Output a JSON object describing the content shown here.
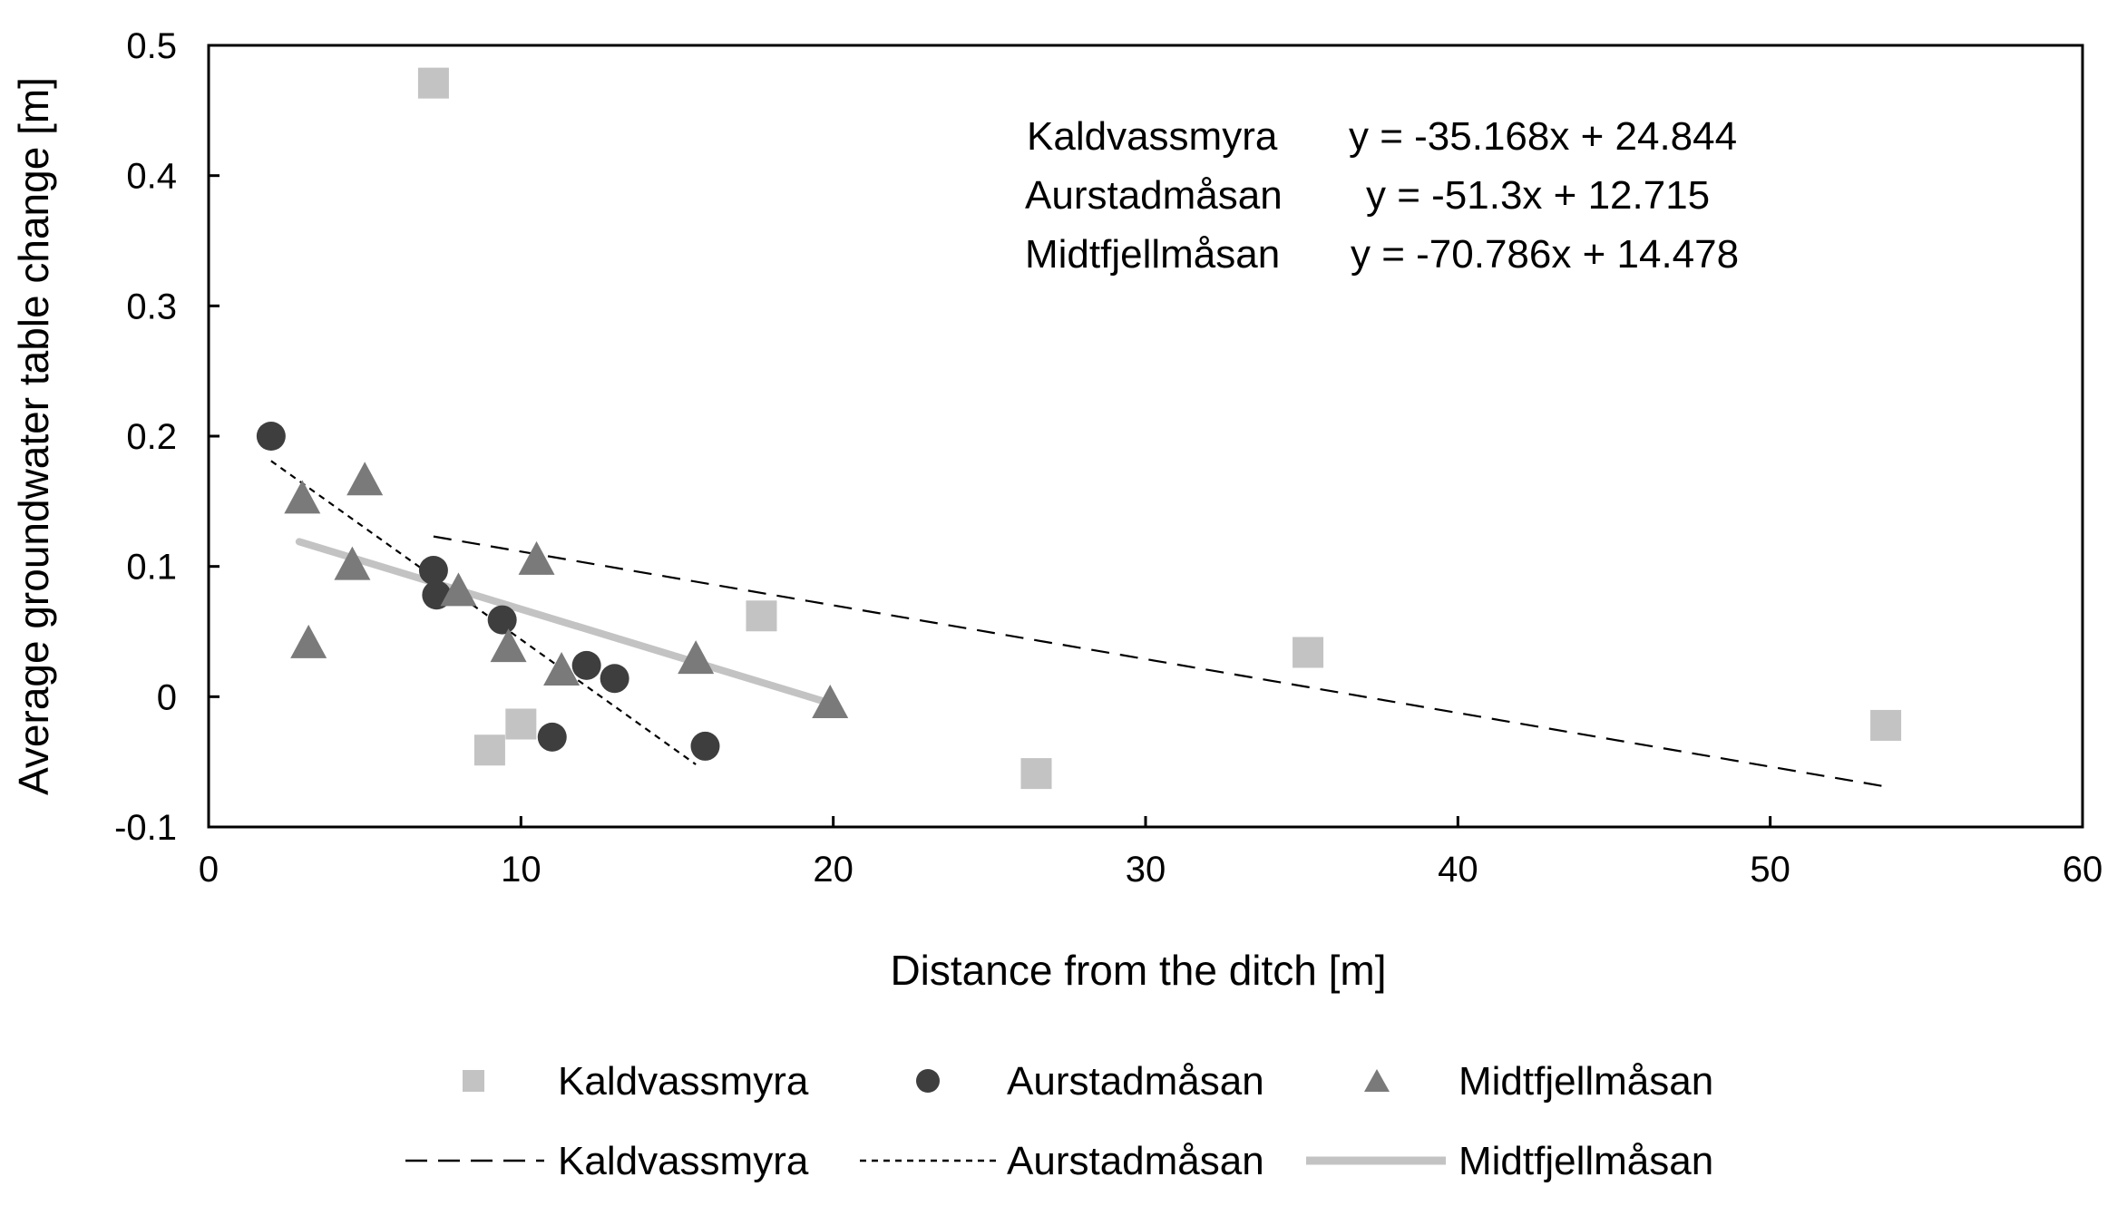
{
  "chart_data": {
    "type": "scatter",
    "title": "",
    "xlabel": "Distance from the ditch [m]",
    "ylabel": "Average groundwater table change [m]",
    "xlim": [
      0,
      60
    ],
    "ylim": [
      -0.1,
      0.5
    ],
    "xticks": [
      0,
      10,
      20,
      30,
      40,
      50,
      60
    ],
    "yticks": [
      -0.1,
      0,
      0.1,
      0.2,
      0.3,
      0.4,
      0.5
    ],
    "ytick_labels": [
      "-0.1",
      "0",
      "0.1",
      "0.2",
      "0.3",
      "0.4",
      "0.5"
    ],
    "xtick_labels": [
      "0",
      "10",
      "20",
      "30",
      "40",
      "50",
      "60"
    ],
    "grid": false,
    "legend_position": "bottom",
    "series": [
      {
        "name": "Kaldvassmyra",
        "marker": "square",
        "color": "#c3c3c3",
        "points": [
          {
            "x": 7.2,
            "y": 0.471
          },
          {
            "x": 9.0,
            "y": -0.041
          },
          {
            "x": 10.0,
            "y": -0.021
          },
          {
            "x": 17.7,
            "y": 0.062
          },
          {
            "x": 26.5,
            "y": -0.059
          },
          {
            "x": 35.2,
            "y": 0.034
          },
          {
            "x": 53.7,
            "y": -0.022
          }
        ],
        "trendline": {
          "label": "Kaldvassmyra",
          "style": "long-dash",
          "color": "#000000",
          "x": [
            7.2,
            53.7
          ],
          "y": [
            0.123,
            -0.069
          ]
        }
      },
      {
        "name": "Aurstadmåsan",
        "marker": "circle",
        "color": "#3e3e3e",
        "points": [
          {
            "x": 2.0,
            "y": 0.2
          },
          {
            "x": 7.2,
            "y": 0.097
          },
          {
            "x": 7.3,
            "y": 0.078
          },
          {
            "x": 9.4,
            "y": 0.059
          },
          {
            "x": 11.0,
            "y": -0.031
          },
          {
            "x": 12.1,
            "y": 0.024
          },
          {
            "x": 13.0,
            "y": 0.014
          },
          {
            "x": 15.9,
            "y": -0.038
          }
        ],
        "trendline": {
          "label": "Aurstadmåsan",
          "style": "short-dash",
          "color": "#000000",
          "x": [
            2.0,
            15.6
          ],
          "y": [
            0.181,
            -0.052
          ]
        }
      },
      {
        "name": "Midtfjellmåsan",
        "marker": "triangle",
        "color": "#7a7a7a",
        "points": [
          {
            "x": 3.0,
            "y": 0.151
          },
          {
            "x": 3.2,
            "y": 0.04
          },
          {
            "x": 4.6,
            "y": 0.1
          },
          {
            "x": 5.0,
            "y": 0.165
          },
          {
            "x": 8.0,
            "y": 0.08
          },
          {
            "x": 9.6,
            "y": 0.037
          },
          {
            "x": 10.5,
            "y": 0.104
          },
          {
            "x": 11.3,
            "y": 0.019
          },
          {
            "x": 15.6,
            "y": 0.028
          },
          {
            "x": 19.9,
            "y": -0.006
          }
        ],
        "trendline": {
          "label": "Midtfjellmåsan",
          "style": "solid",
          "color": "#c3c3c3",
          "x": [
            2.9,
            19.9
          ],
          "y": [
            0.119,
            -0.005
          ]
        }
      }
    ],
    "equations": [
      {
        "site": "Kaldvassmyra",
        "formula": "y = -35.168x + 24.844"
      },
      {
        "site": "Aurstadmåsan",
        "formula": "y = -51.3x + 12.715"
      },
      {
        "site": "Midtfjellmåsan",
        "formula": "y = -70.786x + 14.478"
      }
    ]
  }
}
